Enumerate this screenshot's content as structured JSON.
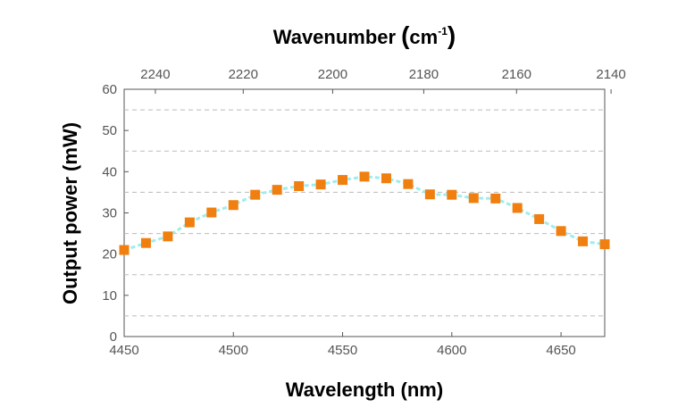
{
  "chart_data": {
    "type": "line",
    "xlabel": "Wavelength (nm)",
    "ylabel": "Output power (mW)",
    "top_axis": {
      "label_main": "Wavenumber",
      "label_unit": "cm",
      "label_exp": "-1",
      "ticks": [
        2240,
        2220,
        2200,
        2180,
        2160,
        2140
      ]
    },
    "xlim": [
      4450,
      4670
    ],
    "ylim": [
      0,
      60
    ],
    "x_ticks": [
      4450,
      4500,
      4550,
      4600,
      4650
    ],
    "y_ticks": [
      0,
      10,
      20,
      30,
      40,
      50,
      60
    ],
    "grid_y_dashed": [
      5,
      15,
      25,
      35,
      45,
      55
    ],
    "marker_color": "#F07F0F",
    "line_color": "#9EEDEE",
    "series": [
      {
        "x": [
          4450,
          4460,
          4470,
          4480,
          4490,
          4500,
          4510,
          4520,
          4530,
          4540,
          4550,
          4560,
          4570,
          4580,
          4590,
          4600,
          4610,
          4620,
          4630,
          4640,
          4650,
          4660,
          4670
        ],
        "y": [
          21.0,
          22.7,
          24.3,
          27.7,
          30.1,
          31.9,
          34.4,
          35.6,
          36.5,
          36.9,
          38.0,
          38.8,
          38.4,
          37.0,
          34.5,
          34.4,
          33.6,
          33.5,
          31.2,
          28.5,
          25.6,
          23.1,
          22.4
        ]
      }
    ]
  }
}
